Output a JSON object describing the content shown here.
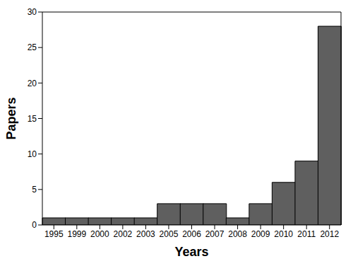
{
  "chart_data": {
    "type": "bar",
    "x_label": "Years",
    "y_label": "Papers",
    "categories": [
      "1995",
      "1999",
      "2000",
      "2002",
      "2003",
      "2005",
      "2006",
      "2007",
      "2008",
      "2009",
      "2010",
      "2011",
      "2012"
    ],
    "values": [
      1,
      1,
      1,
      1,
      1,
      3,
      3,
      3,
      1,
      3,
      6,
      9,
      28
    ],
    "color": "#5f5f5f",
    "ylim": [
      0,
      30
    ],
    "yticks": [
      0,
      5,
      10,
      15,
      20,
      25,
      30
    ],
    "grid": false
  }
}
